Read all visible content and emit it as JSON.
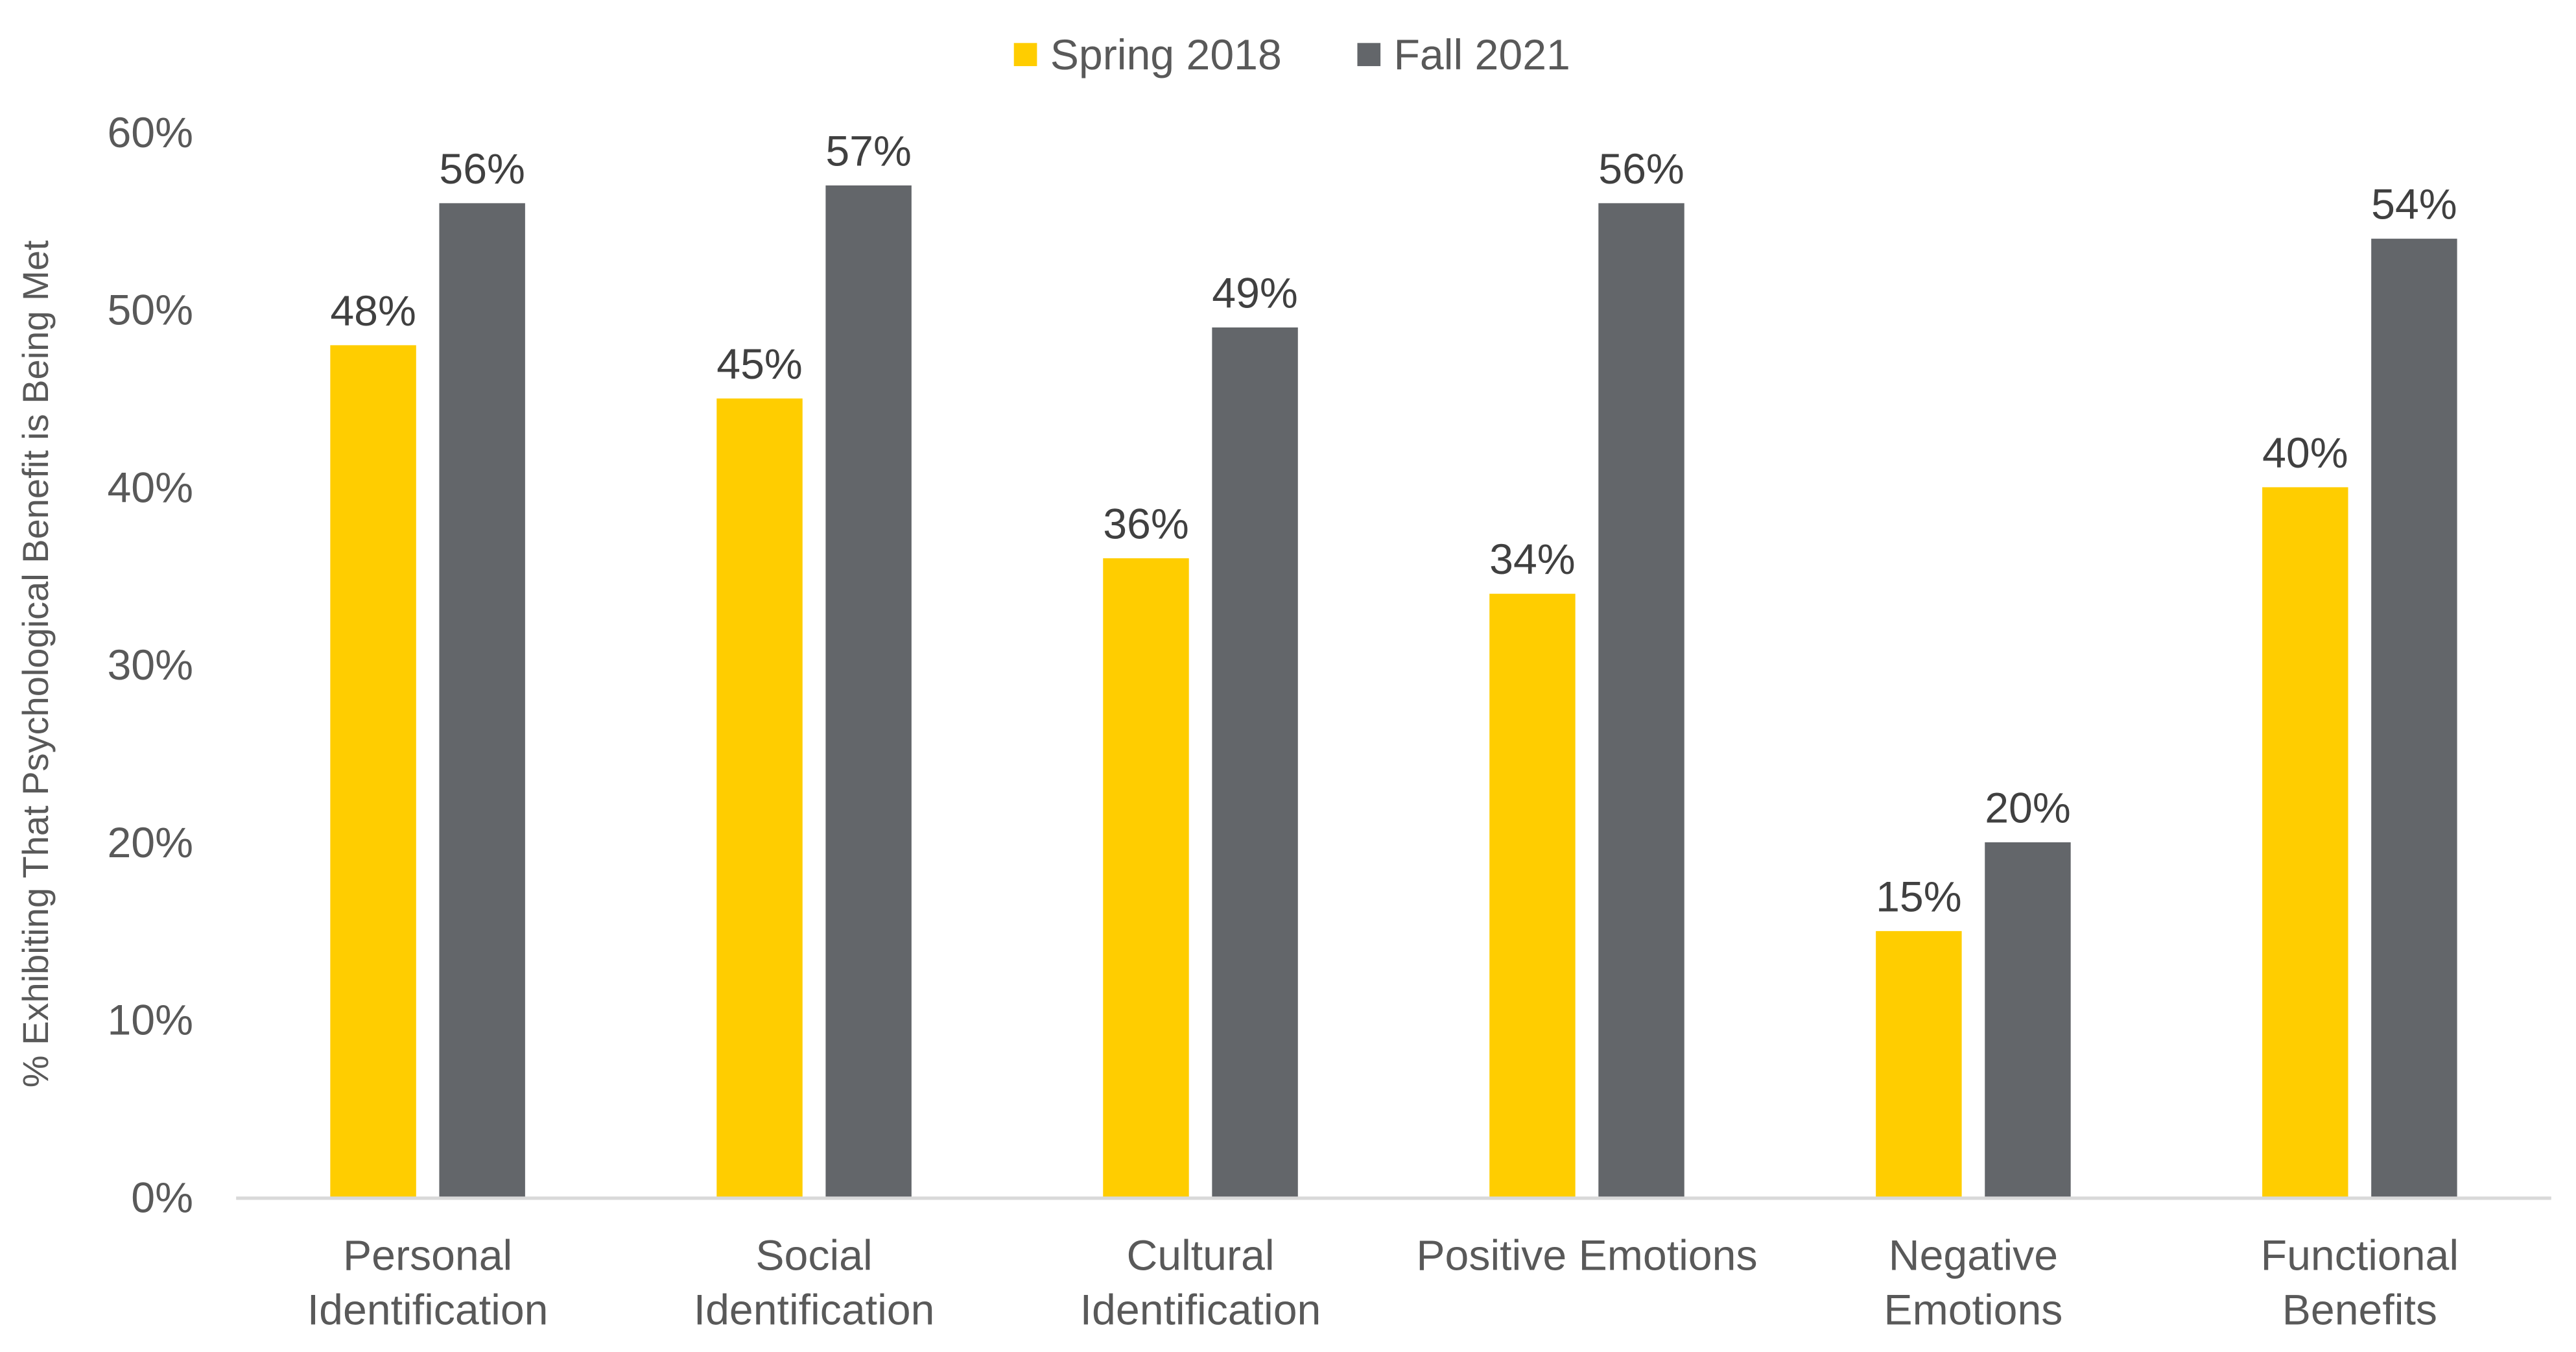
{
  "chart_data": {
    "type": "bar",
    "title": "",
    "xlabel": "",
    "ylabel": "% Exhibiting That Psychological Benefit is Being Met",
    "ylim": [
      0,
      60
    ],
    "yticks": [
      "0%",
      "10%",
      "20%",
      "30%",
      "40%",
      "50%",
      "60%"
    ],
    "grid": false,
    "legend_position": "top-center",
    "categories": [
      [
        "Personal",
        "Identification"
      ],
      [
        "Social",
        "Identification"
      ],
      [
        "Cultural",
        "Identification"
      ],
      [
        "Positive Emotions"
      ],
      [
        "Negative",
        "Emotions"
      ],
      [
        "Functional",
        "Benefits"
      ]
    ],
    "series": [
      {
        "name": "Spring 2018",
        "color": "#FFCD00",
        "values": [
          48,
          45,
          36,
          34,
          15,
          40
        ],
        "labels": [
          "48%",
          "45%",
          "36%",
          "34%",
          "15%",
          "40%"
        ]
      },
      {
        "name": "Fall 2021",
        "color": "#63666A",
        "values": [
          56,
          57,
          49,
          56,
          20,
          54
        ],
        "labels": [
          "56%",
          "57%",
          "49%",
          "56%",
          "20%",
          "54%"
        ]
      }
    ]
  }
}
